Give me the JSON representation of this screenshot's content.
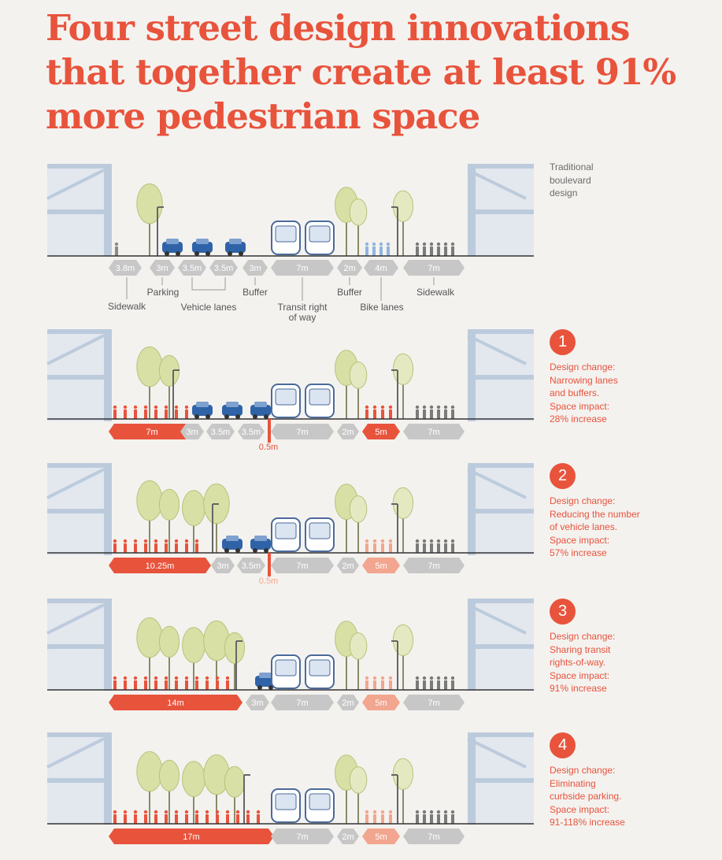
{
  "title_lines": [
    "Four street design innovations",
    "that together create at least 91%",
    "more pedestrian space"
  ],
  "colors": {
    "accent": "#e8533c",
    "accent_light": "#f2a58f",
    "segment_gray": "#c7c7c7",
    "building": "#bccbdc",
    "car": "#2f63a8",
    "tree": "#d9e0a6"
  },
  "sections": [
    {
      "kind": "traditional",
      "label_lines": [
        "Traditional",
        "boulevard",
        "design"
      ],
      "segments": [
        {
          "label": "3.8m",
          "tone": "gray"
        },
        {
          "label": "3m",
          "tone": "gray"
        },
        {
          "label": "3.5m",
          "tone": "gray"
        },
        {
          "label": "3.5m",
          "tone": "gray"
        },
        {
          "label": "3m",
          "tone": "gray"
        },
        {
          "label": "7m",
          "tone": "gray"
        },
        {
          "label": "2m",
          "tone": "gray"
        },
        {
          "label": "4m",
          "tone": "gray"
        },
        {
          "label": "7m",
          "tone": "gray"
        }
      ],
      "annotations": [
        {
          "lines": [
            "Sidewalk"
          ]
        },
        {
          "lines": [
            "Parking"
          ]
        },
        {
          "lines": [
            "Vehicle lanes"
          ]
        },
        {
          "lines": [
            "Buffer"
          ]
        },
        {
          "lines": [
            "Transit right",
            "of way"
          ]
        },
        {
          "lines": [
            "Buffer"
          ]
        },
        {
          "lines": [
            "Bike lanes"
          ]
        },
        {
          "lines": [
            "Sidewalk"
          ]
        }
      ],
      "cars": 3
    },
    {
      "kind": "change",
      "number": "1",
      "change_lines": [
        "Design change:",
        "Narrowing lanes",
        "and buffers.",
        "Space impact:",
        "28% increase"
      ],
      "segments": [
        {
          "label": "7m",
          "tone": "red"
        },
        {
          "label": "3m",
          "tone": "gray"
        },
        {
          "label": "3.5m",
          "tone": "gray"
        },
        {
          "label": "3.5m",
          "tone": "gray"
        },
        {
          "label": "",
          "tone": "redbar"
        },
        {
          "label": "7m",
          "tone": "gray"
        },
        {
          "label": "2m",
          "tone": "gray"
        },
        {
          "label": "5m",
          "tone": "red"
        },
        {
          "label": "7m",
          "tone": "gray"
        }
      ],
      "marker_label": "0.5m",
      "cars": 3
    },
    {
      "kind": "change",
      "number": "2",
      "change_lines": [
        "Design change:",
        "Reducing the number",
        "of vehicle lanes.",
        "Space impact:",
        "57% increase"
      ],
      "segments": [
        {
          "label": "10.25m",
          "tone": "red"
        },
        {
          "label": "3m",
          "tone": "gray"
        },
        {
          "label": "3.5m",
          "tone": "gray"
        },
        {
          "label": "",
          "tone": "redbar"
        },
        {
          "label": "7m",
          "tone": "gray"
        },
        {
          "label": "2m",
          "tone": "gray"
        },
        {
          "label": "5m",
          "tone": "light"
        },
        {
          "label": "7m",
          "tone": "gray"
        }
      ],
      "marker_label": "0.5m",
      "cars": 2
    },
    {
      "kind": "change",
      "number": "3",
      "change_lines": [
        "Design change:",
        "Sharing transit",
        "rights-of-way.",
        "Space impact:",
        "91% increase"
      ],
      "segments": [
        {
          "label": "14m",
          "tone": "red"
        },
        {
          "label": "3m",
          "tone": "gray"
        },
        {
          "label": "7m",
          "tone": "gray"
        },
        {
          "label": "2m",
          "tone": "gray"
        },
        {
          "label": "5m",
          "tone": "light"
        },
        {
          "label": "7m",
          "tone": "gray"
        }
      ],
      "cars": 1
    },
    {
      "kind": "change",
      "number": "4",
      "change_lines": [
        "Design change:",
        "Eliminating",
        "curbside parking.",
        "Space impact:",
        "91-118% increase"
      ],
      "segments": [
        {
          "label": "17m",
          "tone": "red"
        },
        {
          "label": "7m",
          "tone": "gray"
        },
        {
          "label": "2m",
          "tone": "gray"
        },
        {
          "label": "5m",
          "tone": "light"
        },
        {
          "label": "7m",
          "tone": "gray"
        }
      ],
      "cars": 0
    }
  ]
}
